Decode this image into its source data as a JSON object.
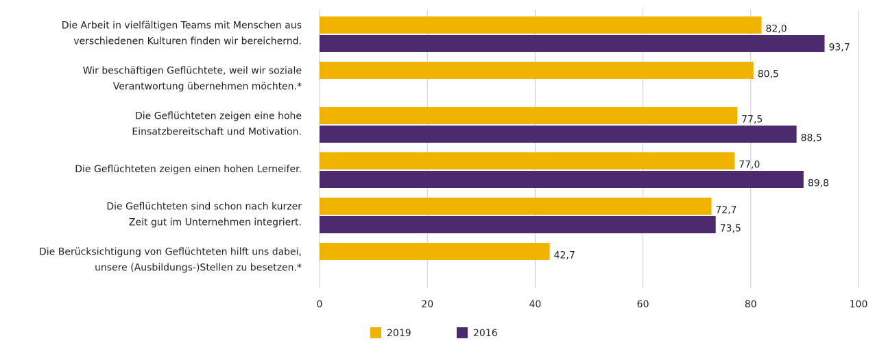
{
  "chart_data": {
    "type": "hbar",
    "categories": [
      [
        "Die Arbeit in vielfältigen Teams mit Menschen aus",
        "verschiedenen Kulturen finden wir bereichernd."
      ],
      [
        "Wir beschäftigen Geflüchtete, weil wir soziale",
        "Verantwortung übernehmen möchten.*"
      ],
      [
        "Die Geflüchteten zeigen eine hohe",
        "Einsatzbereitschaft und Motivation."
      ],
      [
        "Die Geflüchteten zeigen einen hohen Lerneifer."
      ],
      [
        "Die Geflüchteten sind schon nach kurzer",
        "Zeit gut im Unternehmen integriert."
      ],
      [
        "Die Berücksichtigung von Geflüchteten hilft uns dabei,",
        "unsere (Ausbildungs-)Stellen zu besetzen.*"
      ]
    ],
    "series": [
      {
        "name": "2019",
        "color": "#f0b400",
        "values": [
          82.0,
          80.5,
          77.5,
          77.0,
          72.7,
          42.7
        ],
        "value_labels": [
          "82,0",
          "80,5",
          "77,5",
          "77,0",
          "72,7",
          "42,7"
        ]
      },
      {
        "name": "2016",
        "color": "#4b2a6e",
        "values": [
          93.7,
          null,
          88.5,
          89.8,
          73.5,
          null
        ],
        "value_labels": [
          "93,7",
          null,
          "88,5",
          "89,8",
          "73,5",
          null
        ]
      }
    ],
    "xlim": [
      0,
      100
    ],
    "xticks": [
      0,
      20,
      40,
      60,
      80,
      100
    ],
    "grid": true
  }
}
